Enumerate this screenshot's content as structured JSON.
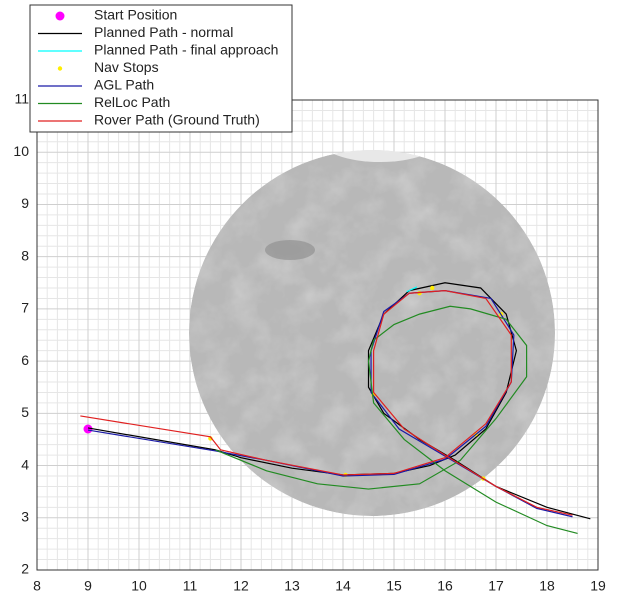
{
  "chart_data": {
    "type": "line",
    "xlim": [
      8,
      19
    ],
    "ylim": [
      2,
      11
    ],
    "xticks": [
      8,
      9,
      10,
      11,
      12,
      13,
      14,
      15,
      16,
      17,
      18,
      19
    ],
    "yticks": [
      2,
      3,
      4,
      5,
      6,
      7,
      8,
      9,
      10,
      11
    ],
    "grid": true,
    "minor_grid": true,
    "legend": "top-left",
    "series": [
      {
        "name": "Start Position",
        "color": "#ff00ff",
        "mode": "markers",
        "x": [
          9.0
        ],
        "values": [
          4.7
        ]
      },
      {
        "name": "Planned Path - normal",
        "color": "#000000",
        "mode": "lines",
        "x": [
          9.0,
          11.5,
          12.0,
          13.0,
          14.0,
          15.0,
          15.7,
          16.2,
          16.8,
          17.2,
          17.4,
          17.2,
          16.7,
          16.0,
          15.3,
          14.8,
          14.5,
          14.5,
          14.8,
          15.5,
          16.2,
          17.0,
          18.0,
          18.85
        ],
        "values": [
          4.72,
          4.3,
          4.15,
          3.95,
          3.82,
          3.85,
          4.0,
          4.2,
          4.7,
          5.4,
          6.2,
          6.9,
          7.4,
          7.5,
          7.35,
          6.9,
          6.2,
          5.5,
          5.0,
          4.5,
          4.1,
          3.6,
          3.2,
          2.98
        ]
      },
      {
        "name": "Planned Path - final approach",
        "color": "#00ffff",
        "mode": "lines",
        "x": [
          15.25,
          15.45
        ],
        "values": [
          7.33,
          7.42
        ]
      },
      {
        "name": "Nav Stops",
        "color": "#ffee00",
        "mode": "markers",
        "x": [
          11.4,
          14.05,
          14.6,
          15.5,
          15.75,
          17.1,
          16.6,
          16.75
        ],
        "values": [
          4.52,
          3.82,
          5.35,
          7.3,
          7.4,
          6.9,
          4.6,
          3.75
        ]
      },
      {
        "name": "AGL Path",
        "color": "#1a1aa6",
        "mode": "lines",
        "x": [
          9.0,
          11.5,
          12.5,
          14.0,
          15.0,
          16.0,
          16.8,
          17.3,
          17.35,
          16.9,
          16.0,
          15.3,
          14.8,
          14.55,
          14.55,
          15.1,
          16.0,
          17.0,
          17.8,
          18.5
        ],
        "values": [
          4.68,
          4.28,
          4.1,
          3.8,
          3.83,
          4.12,
          4.75,
          5.6,
          6.5,
          7.2,
          7.35,
          7.3,
          6.95,
          6.2,
          5.4,
          4.7,
          4.18,
          3.6,
          3.18,
          3.02
        ]
      },
      {
        "name": "RelLoc Path",
        "color": "#228b22",
        "mode": "lines",
        "x": [
          11.5,
          12.5,
          13.5,
          14.5,
          15.5,
          16.3,
          17.0,
          17.6,
          17.6,
          17.2,
          16.5,
          16.1,
          15.5,
          15.0,
          14.6,
          14.5,
          14.6,
          15.2,
          16.0,
          17.0,
          18.0,
          18.6
        ],
        "values": [
          4.3,
          3.9,
          3.65,
          3.55,
          3.65,
          4.1,
          4.9,
          5.7,
          6.3,
          6.8,
          7.0,
          7.05,
          6.9,
          6.7,
          6.4,
          6.0,
          5.2,
          4.5,
          3.9,
          3.3,
          2.85,
          2.7
        ]
      },
      {
        "name": "Rover Path (Ground Truth)",
        "color": "#e02020",
        "mode": "lines",
        "x": [
          8.85,
          11.4,
          11.6,
          12.5,
          14.0,
          15.0,
          16.0,
          16.8,
          17.3,
          17.3,
          16.8,
          16.0,
          15.3,
          14.8,
          14.6,
          14.6,
          15.2,
          16.0,
          17.0,
          17.8,
          18.5
        ],
        "values": [
          4.95,
          4.55,
          4.3,
          4.1,
          3.82,
          3.85,
          4.15,
          4.8,
          5.6,
          6.5,
          7.2,
          7.35,
          7.3,
          6.9,
          6.2,
          5.4,
          4.7,
          4.2,
          3.6,
          3.2,
          3.05
        ]
      }
    ]
  }
}
